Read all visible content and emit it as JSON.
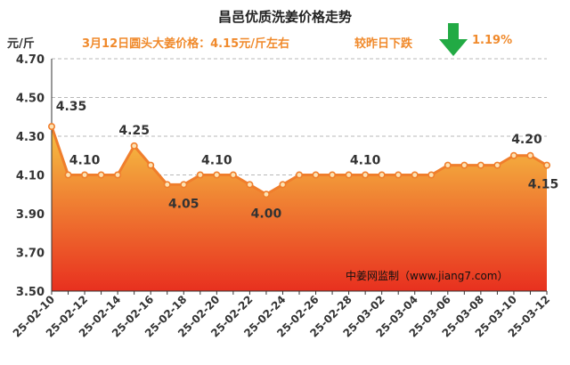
{
  "chart_data": {
    "type": "area",
    "title": "昌邑优质洗姜价格走势",
    "unit_label": "元/斤",
    "subtitle": "3月12日圆头大姜价格：4.15元/斤左右",
    "change_text": "较昨日下跌",
    "change_percent": "1.19%",
    "change_direction": "down",
    "watermark": "中姜网监制（www.jiang7.com）",
    "x": [
      "25-02-10",
      "25-02-11",
      "25-02-12",
      "25-02-13",
      "25-02-14",
      "25-02-15",
      "25-02-16",
      "25-02-17",
      "25-02-18",
      "25-02-19",
      "25-02-20",
      "25-02-21",
      "25-02-22",
      "25-02-23",
      "25-02-24",
      "25-02-25",
      "25-02-26",
      "25-02-27",
      "25-02-28",
      "25-03-01",
      "25-03-02",
      "25-03-03",
      "25-03-04",
      "25-03-05",
      "25-03-06",
      "25-03-07",
      "25-03-08",
      "25-03-09",
      "25-03-10",
      "25-03-11",
      "25-03-12"
    ],
    "values": [
      4.35,
      4.1,
      4.1,
      4.1,
      4.1,
      4.25,
      4.15,
      4.05,
      4.05,
      4.1,
      4.1,
      4.1,
      4.05,
      4.0,
      4.05,
      4.1,
      4.1,
      4.1,
      4.1,
      4.1,
      4.1,
      4.1,
      4.1,
      4.1,
      4.15,
      4.15,
      4.15,
      4.15,
      4.2,
      4.2,
      4.15
    ],
    "xtick_labels": [
      "25-02-10",
      "25-02-12",
      "25-02-14",
      "25-02-16",
      "25-02-18",
      "25-02-20",
      "25-02-22",
      "25-02-24",
      "25-02-26",
      "25-02-28",
      "25-03-02",
      "25-03-04",
      "25-03-06",
      "25-03-08",
      "25-03-10",
      "25-03-12"
    ],
    "yticks": [
      "3.50",
      "3.70",
      "3.90",
      "4.10",
      "4.30",
      "4.50",
      "4.70"
    ],
    "ylim": [
      3.5,
      4.7
    ],
    "data_labels": [
      {
        "index": 0,
        "text": "4.35"
      },
      {
        "index": 2,
        "text": "4.10"
      },
      {
        "index": 5,
        "text": "4.25"
      },
      {
        "index": 8,
        "text": "4.05"
      },
      {
        "index": 10,
        "text": "4.10"
      },
      {
        "index": 13,
        "text": "4.00"
      },
      {
        "index": 19,
        "text": "4.10"
      },
      {
        "index": 29,
        "text": "4.20"
      },
      {
        "index": 30,
        "text": "4.15"
      }
    ],
    "grid": true,
    "colors": {
      "line": "#f07e2c",
      "fill_top": "#f6c343",
      "fill_bottom": "#e8301f",
      "arrow": "#22aa44",
      "text_accent": "#f08a2c"
    }
  }
}
